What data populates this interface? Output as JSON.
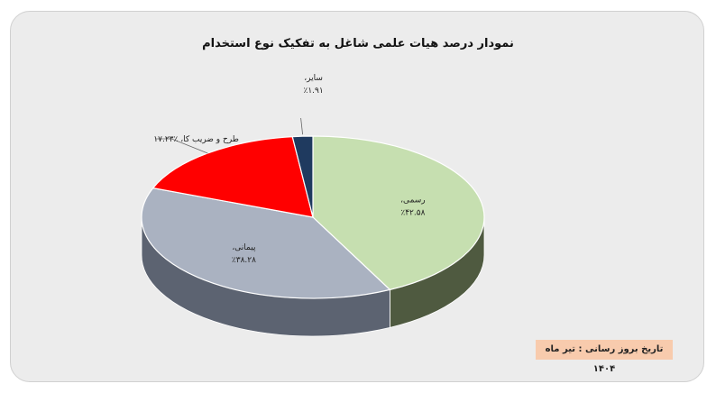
{
  "chart_data": {
    "type": "pie",
    "title": "نمودار درصد هیات علمی شاغل به تفکیک نوع استخدام",
    "slices": [
      {
        "label": "رسمی،",
        "value": 42.58,
        "value_text": "٪۴۲.۵۸",
        "color": "#c6dfb0",
        "side_color": "#4f5a40"
      },
      {
        "label": "پیمانی،",
        "value": 38.28,
        "value_text": "٪۳۸.۲۸",
        "color": "#aab2c1",
        "side_color": "#5c6371"
      },
      {
        "label": "طرح و ضریب کا،",
        "value": 17.23,
        "value_text": "٪۱۷.۲۳",
        "color": "#ff0000",
        "side_color": "#8b0000"
      },
      {
        "label": "سایر،",
        "value": 1.91,
        "value_text": "٪۱.۹۱",
        "color": "#1f3a5f",
        "side_color": "#0e1c30"
      }
    ],
    "legend": "none"
  },
  "note": {
    "text": "تاریخ بروز رسانی : تیر ماه ۱۴۰۴"
  }
}
